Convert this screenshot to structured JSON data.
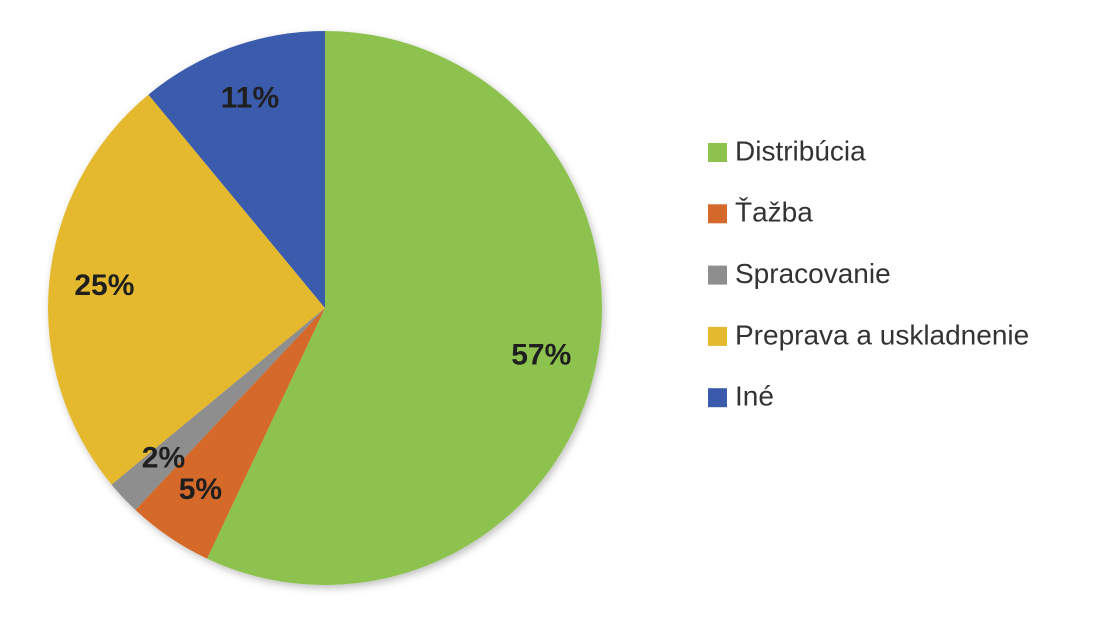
{
  "chart_data": {
    "type": "pie",
    "categories": [
      "Distribúcia",
      "Ťažba",
      "Spracovanie",
      "Preprava a uskladnenie",
      "Iné"
    ],
    "values": [
      57,
      5,
      2,
      25,
      11
    ],
    "value_labels": [
      "57%",
      "5%",
      "2%",
      "25%",
      "11%"
    ],
    "colors": [
      "#8cc24d",
      "#d4692b",
      "#8e8e8e",
      "#e4b92e",
      "#3a5bac"
    ],
    "legend": "right"
  }
}
